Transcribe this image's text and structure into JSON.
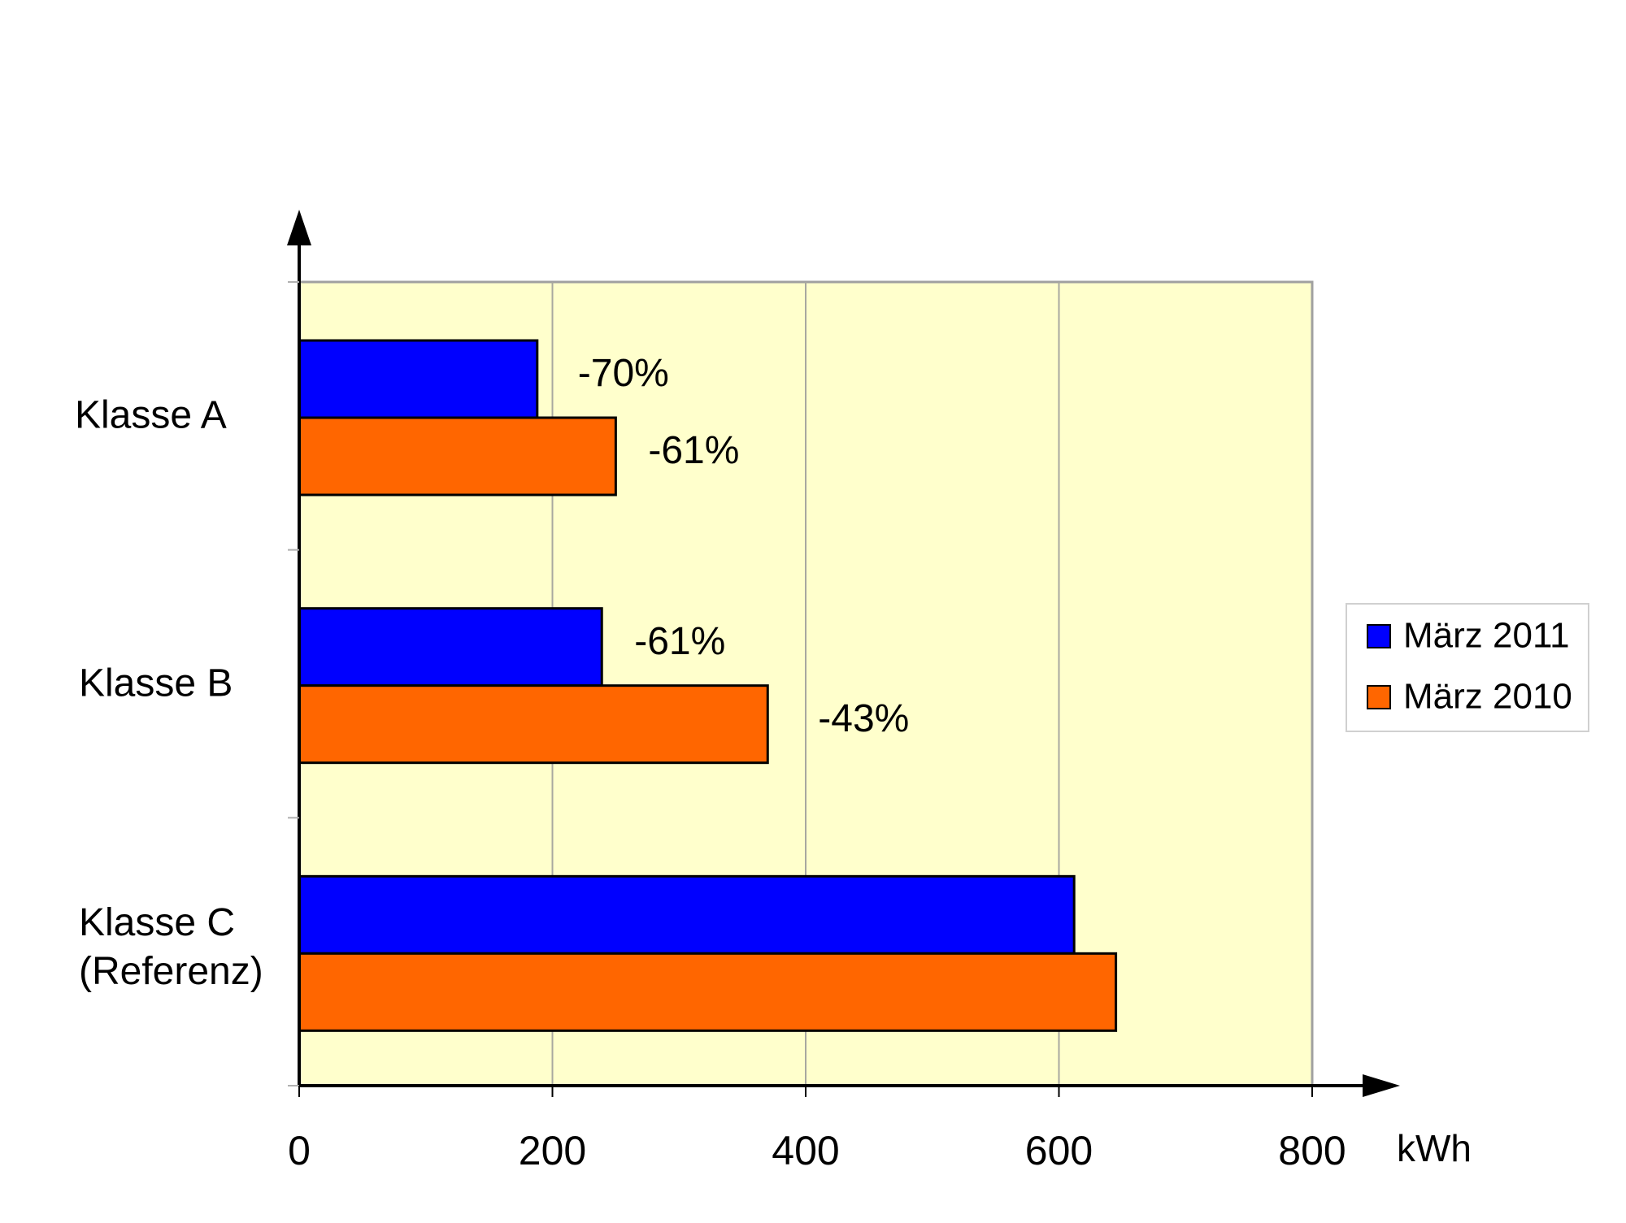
{
  "chart_data": {
    "type": "bar",
    "orientation": "horizontal",
    "categories": [
      [
        "Klasse A"
      ],
      [
        "Klasse B"
      ],
      [
        "Klasse C",
        "(Referenz)"
      ]
    ],
    "series": [
      {
        "name": "März 2011",
        "color": "#0000FF",
        "values": [
          188,
          239,
          612
        ],
        "labels": [
          "-70%",
          "-61%",
          ""
        ]
      },
      {
        "name": "März 2010",
        "color": "#FF6600",
        "values": [
          250,
          370,
          645
        ],
        "labels": [
          "-61%",
          "-43%",
          ""
        ]
      }
    ],
    "x_ticks": [
      "0",
      "200",
      "400",
      "600",
      "800"
    ],
    "xlim": [
      0,
      800
    ],
    "x_unit": "kWh",
    "grid": "vertical",
    "plot_background": "#FFFFCC",
    "legend_position": "right"
  }
}
